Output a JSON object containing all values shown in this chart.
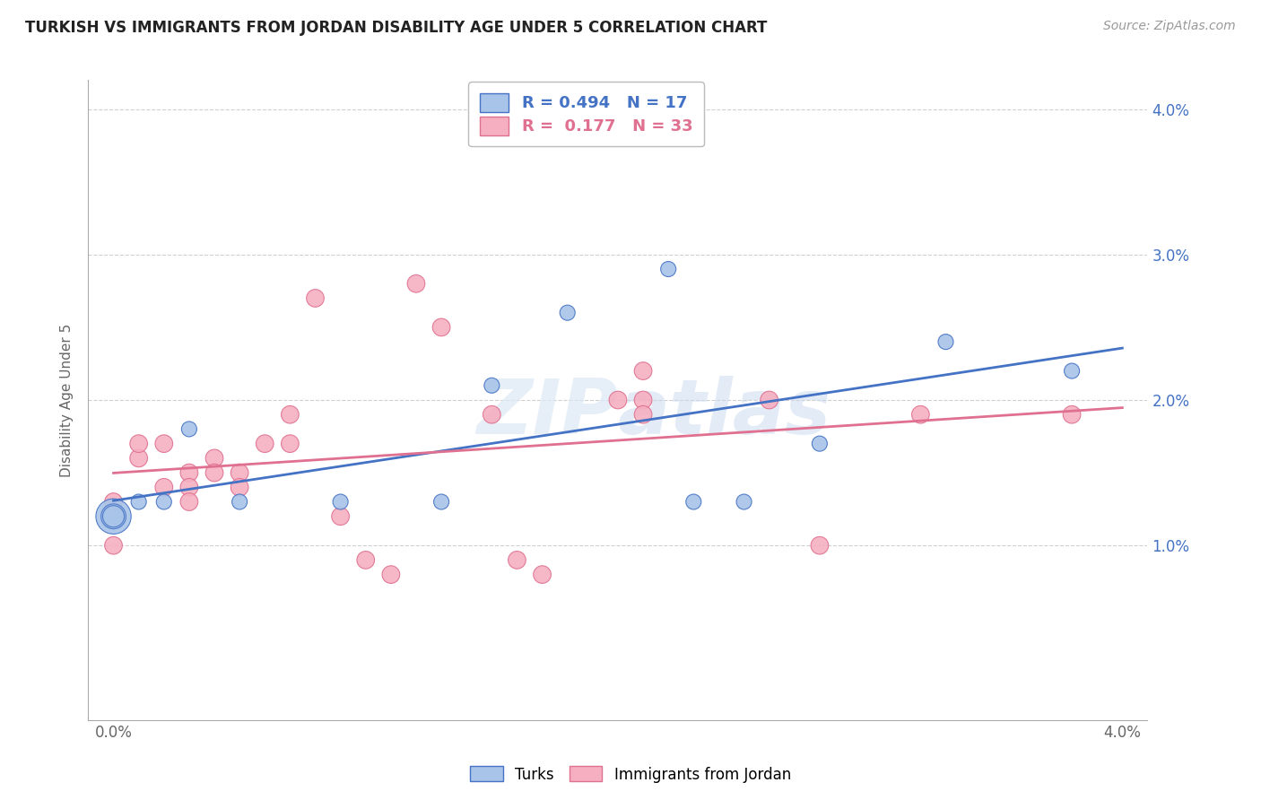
{
  "title": "TURKISH VS IMMIGRANTS FROM JORDAN DISABILITY AGE UNDER 5 CORRELATION CHART",
  "source": "Source: ZipAtlas.com",
  "ylabel": "Disability Age Under 5",
  "xlim": [
    0.0,
    0.04
  ],
  "ylim": [
    0.0,
    0.04
  ],
  "legend_turks_R": "0.494",
  "legend_turks_N": "17",
  "legend_jordan_R": "0.177",
  "legend_jordan_N": "33",
  "turks_color": "#a8c4e8",
  "jordan_color": "#f5afc0",
  "turks_line_color": "#4472c4",
  "jordan_line_color": "#e07090",
  "background_color": "#ffffff",
  "grid_color": "#d0d0d0",
  "watermark": "ZIPAtlas",
  "turks_x": [
    0.0,
    0.0,
    0.0,
    0.001,
    0.002,
    0.003,
    0.005,
    0.009,
    0.013,
    0.015,
    0.018,
    0.022,
    0.023,
    0.025,
    0.028,
    0.033,
    0.038
  ],
  "turks_y": [
    0.012,
    0.012,
    0.012,
    0.013,
    0.013,
    0.018,
    0.013,
    0.013,
    0.013,
    0.021,
    0.026,
    0.029,
    0.013,
    0.013,
    0.017,
    0.024,
    0.022
  ],
  "jordan_x": [
    0.0,
    0.0,
    0.001,
    0.001,
    0.002,
    0.002,
    0.003,
    0.003,
    0.003,
    0.004,
    0.004,
    0.005,
    0.005,
    0.006,
    0.007,
    0.007,
    0.008,
    0.009,
    0.01,
    0.011,
    0.012,
    0.013,
    0.015,
    0.016,
    0.017,
    0.02,
    0.021,
    0.021,
    0.021,
    0.026,
    0.028,
    0.032,
    0.038
  ],
  "jordan_y": [
    0.01,
    0.013,
    0.016,
    0.017,
    0.017,
    0.014,
    0.015,
    0.014,
    0.013,
    0.016,
    0.015,
    0.015,
    0.014,
    0.017,
    0.017,
    0.019,
    0.027,
    0.012,
    0.009,
    0.008,
    0.028,
    0.025,
    0.019,
    0.009,
    0.008,
    0.02,
    0.02,
    0.019,
    0.022,
    0.02,
    0.01,
    0.019,
    0.019
  ],
  "turks_extra_large_x": [
    0.0
  ],
  "turks_extra_large_y": [
    0.012
  ],
  "turks_large_x": [
    0.0
  ],
  "turks_large_y": [
    0.012
  ]
}
